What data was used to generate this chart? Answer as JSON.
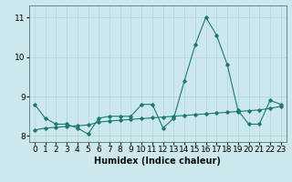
{
  "xlabel": "Humidex (Indice chaleur)",
  "background_color": "#cce8ed",
  "line_color": "#1a7a6e",
  "x_values": [
    0,
    1,
    2,
    3,
    4,
    5,
    6,
    7,
    8,
    9,
    10,
    11,
    12,
    13,
    14,
    15,
    16,
    17,
    18,
    19,
    20,
    21,
    22,
    23
  ],
  "y_main": [
    8.8,
    8.45,
    8.3,
    8.3,
    8.2,
    8.05,
    8.45,
    8.5,
    8.5,
    8.5,
    8.8,
    8.8,
    8.2,
    8.45,
    9.4,
    10.3,
    11.0,
    10.55,
    9.8,
    8.65,
    8.3,
    8.3,
    8.9,
    8.8
  ],
  "y_trend": [
    8.15,
    8.2,
    8.22,
    8.24,
    8.26,
    8.28,
    8.35,
    8.38,
    8.4,
    8.42,
    8.44,
    8.46,
    8.48,
    8.5,
    8.52,
    8.54,
    8.56,
    8.58,
    8.6,
    8.62,
    8.64,
    8.66,
    8.7,
    8.75
  ],
  "ylim": [
    7.85,
    11.3
  ],
  "yticks": [
    8,
    9,
    10,
    11
  ],
  "xlim": [
    -0.5,
    23.5
  ],
  "grid_color": "#afd4d8",
  "label_fontsize": 7,
  "tick_fontsize": 6.5
}
